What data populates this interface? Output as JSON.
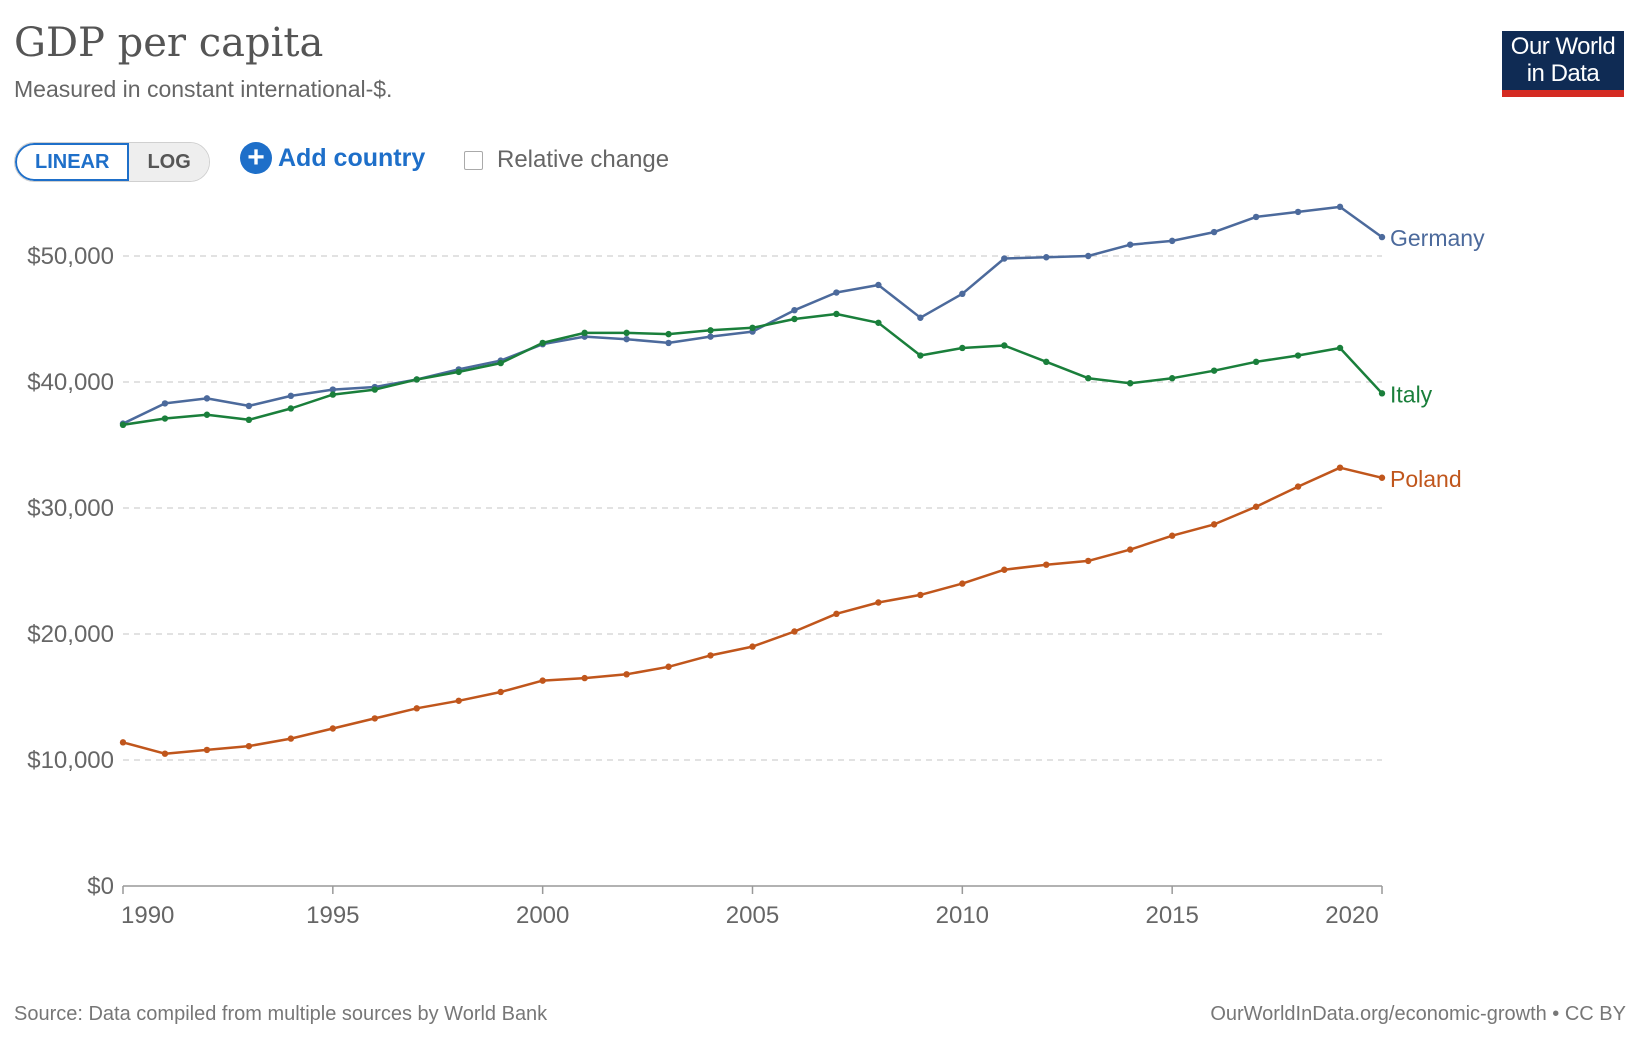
{
  "header": {
    "title": "GDP per capita",
    "subtitle": "Measured in constant international-$."
  },
  "logo": {
    "line1": "Our World",
    "line2": "in Data"
  },
  "controls": {
    "linear_label": "LINEAR",
    "log_label": "LOG",
    "add_country_label": "Add country",
    "relative_change_label": "Relative change"
  },
  "footer": {
    "source": "Source: Data compiled from multiple sources by World Bank",
    "credit": "OurWorldInData.org/economic-growth • CC BY"
  },
  "colors": {
    "germany": "#4c6a9c",
    "italy": "#1a7f3b",
    "poland": "#c0561c",
    "accent": "#1e6fc9"
  },
  "chart_data": {
    "type": "line",
    "title": "GDP per capita",
    "subtitle": "Measured in constant international-$.",
    "xlim": [
      1990,
      2020
    ],
    "ylim": [
      0,
      55000
    ],
    "yticks": [
      0,
      10000,
      20000,
      30000,
      40000,
      50000
    ],
    "ytick_labels": [
      "$0",
      "$10,000",
      "$20,000",
      "$30,000",
      "$40,000",
      "$50,000"
    ],
    "xticks": [
      1990,
      1995,
      2000,
      2005,
      2010,
      2015,
      2020
    ],
    "xtick_labels": [
      "1990",
      "1995",
      "2000",
      "2005",
      "2010",
      "2015",
      "2020"
    ],
    "grid": true,
    "x": [
      1990,
      1991,
      1992,
      1993,
      1994,
      1995,
      1996,
      1997,
      1998,
      1999,
      2000,
      2001,
      2002,
      2003,
      2004,
      2005,
      2006,
      2007,
      2008,
      2009,
      2010,
      2011,
      2012,
      2013,
      2014,
      2015,
      2016,
      2017,
      2018,
      2019,
      2020
    ],
    "series": [
      {
        "name": "Germany",
        "color": "#4c6a9c",
        "values": [
          36700,
          38300,
          38700,
          38100,
          38900,
          39400,
          39600,
          40200,
          41000,
          41700,
          43000,
          43600,
          43400,
          43100,
          43600,
          44000,
          45700,
          47100,
          47700,
          45100,
          47000,
          49800,
          49900,
          50000,
          50900,
          51200,
          51900,
          53100,
          53500,
          53900,
          51500
        ]
      },
      {
        "name": "Italy",
        "color": "#1a7f3b",
        "values": [
          36600,
          37100,
          37400,
          37000,
          37900,
          39000,
          39400,
          40200,
          40800,
          41500,
          43100,
          43900,
          43900,
          43800,
          44100,
          44300,
          45000,
          45400,
          44700,
          42100,
          42700,
          42900,
          41600,
          40300,
          39900,
          40300,
          40900,
          41600,
          42100,
          42700,
          39100
        ]
      },
      {
        "name": "Poland",
        "color": "#c0561c",
        "values": [
          11400,
          10500,
          10800,
          11100,
          11700,
          12500,
          13300,
          14100,
          14700,
          15400,
          16300,
          16500,
          16800,
          17400,
          18300,
          19000,
          20200,
          21600,
          22500,
          23100,
          24000,
          25100,
          25500,
          25800,
          26700,
          27800,
          28700,
          30100,
          31700,
          33200,
          32400
        ]
      }
    ]
  }
}
